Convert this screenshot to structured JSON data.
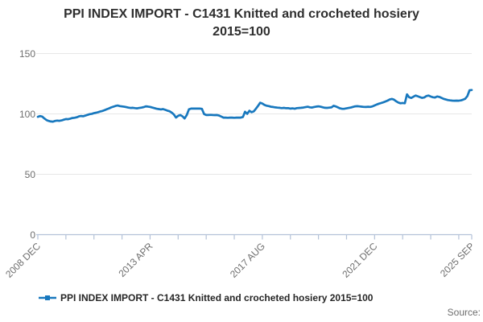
{
  "title": {
    "line1": "PPI INDEX IMPORT - C1431 Knitted and crocheted hosiery",
    "line2": "2015=100"
  },
  "legend": {
    "label": "PPI INDEX IMPORT - C1431 Knitted and crocheted hosiery 2015=100"
  },
  "source_label": "Source:",
  "colors": {
    "line": "#1878be",
    "grid": "#e7e7e7",
    "axis": "#b4c2d8",
    "tick_label": "#6e6e6e",
    "title_text": "#2e2e2e"
  },
  "chart_data": {
    "type": "line",
    "title": "PPI INDEX IMPORT - C1431 Knitted and crocheted hosiery 2015=100",
    "xlabel": "",
    "ylabel": "",
    "x_start": "2008 DEC",
    "x_end": "2025 SEP",
    "frequency": "monthly",
    "n_points": 202,
    "y_ticks": [
      0,
      50,
      100,
      150
    ],
    "ylim": [
      0,
      152
    ],
    "grid": "horizontal",
    "legend_position": "bottom",
    "x_axis": {
      "minor_tick_month_indices": [
        0,
        13,
        26,
        39,
        52,
        65,
        78,
        91,
        104,
        117,
        130,
        143,
        156,
        169,
        182,
        195,
        201
      ],
      "labeled_ticks": [
        {
          "label": "2008 DEC",
          "month_index": 0
        },
        {
          "label": "2013 APR",
          "month_index": 52
        },
        {
          "label": "2017 AUG",
          "month_index": 104
        },
        {
          "label": "2021 DEC",
          "month_index": 156
        },
        {
          "label": "2025 SEP",
          "month_index": 201
        }
      ]
    },
    "series": [
      {
        "name": "PPI INDEX IMPORT - C1431 Knitted and crocheted hosiery 2015=100",
        "values": [
          97.6,
          98.2,
          97.8,
          96.3,
          94.9,
          94.2,
          93.7,
          93.6,
          94.2,
          94.5,
          94.3,
          94.6,
          95.2,
          95.7,
          95.6,
          96.1,
          96.6,
          96.8,
          97.2,
          97.9,
          98.3,
          98.1,
          98.6,
          99.2,
          99.8,
          100.1,
          100.6,
          101.0,
          101.5,
          102.1,
          102.5,
          103.2,
          103.9,
          104.6,
          105.4,
          106.0,
          106.6,
          106.9,
          106.5,
          106.2,
          105.9,
          105.6,
          105.2,
          104.9,
          105.1,
          104.8,
          104.6,
          104.9,
          105.2,
          105.6,
          106.3,
          106.1,
          105.8,
          105.3,
          104.8,
          104.3,
          104.0,
          103.7,
          104.0,
          103.4,
          102.7,
          102.2,
          101.1,
          99.6,
          97.0,
          98.4,
          99.1,
          98.0,
          96.2,
          99.1,
          103.8,
          104.4,
          104.5,
          104.4,
          104.5,
          104.4,
          104.2,
          99.9,
          99.1,
          99.1,
          99.2,
          99.1,
          99.0,
          99.1,
          98.6,
          97.8,
          96.9,
          96.9,
          96.8,
          96.9,
          96.9,
          96.8,
          96.9,
          96.9,
          96.9,
          97.5,
          101.8,
          100.1,
          102.6,
          101.4,
          102.1,
          104.2,
          106.6,
          109.3,
          108.6,
          107.4,
          106.8,
          106.5,
          105.9,
          105.7,
          105.4,
          105.2,
          105.1,
          104.8,
          105.0,
          104.7,
          104.8,
          104.4,
          104.6,
          104.3,
          104.8,
          104.9,
          105.1,
          105.3,
          105.6,
          105.9,
          105.5,
          105.3,
          105.7,
          106.1,
          106.3,
          105.9,
          105.5,
          105.1,
          105.0,
          105.2,
          105.4,
          106.7,
          106.2,
          105.4,
          104.6,
          104.2,
          104.3,
          104.6,
          104.9,
          105.3,
          105.8,
          106.3,
          106.4,
          106.2,
          106.0,
          105.8,
          105.7,
          105.9,
          105.8,
          106.2,
          107.0,
          107.8,
          108.5,
          109.0,
          109.6,
          110.3,
          111.0,
          111.9,
          112.4,
          111.8,
          110.5,
          109.4,
          108.8,
          109.1,
          108.8,
          116.2,
          113.8,
          113.2,
          114.3,
          115.2,
          114.6,
          113.9,
          113.3,
          113.6,
          114.8,
          115.2,
          114.4,
          113.8,
          113.6,
          114.5,
          114.1,
          113.3,
          112.5,
          111.9,
          111.5,
          111.2,
          111.0,
          110.9,
          111.0,
          110.9,
          111.2,
          111.8,
          112.6,
          114.8,
          119.6,
          119.8
        ]
      }
    ]
  }
}
